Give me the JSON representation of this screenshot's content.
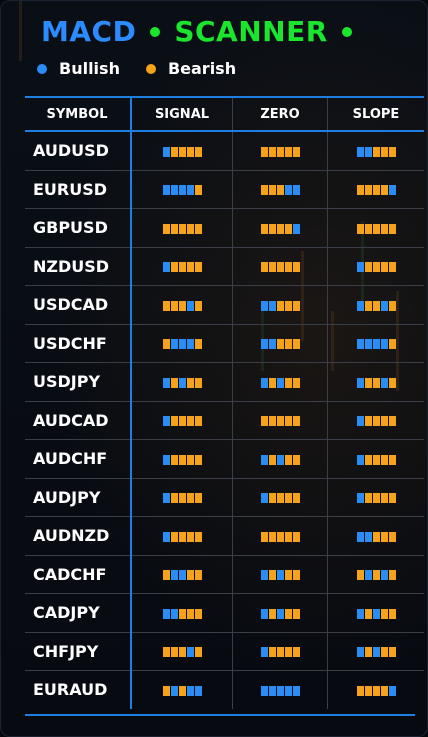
{
  "header": {
    "title_left": "MACD",
    "title_right": "SCANNER",
    "title_left_color": "#2c8cff",
    "title_right_color": "#19e62c"
  },
  "legend": {
    "bullish_label": "Bullish",
    "bearish_label": "Bearish",
    "bullish_color": "#2a8cf5",
    "bearish_color": "#f7a21b"
  },
  "table": {
    "columns": [
      "SYMBOL",
      "SIGNAL",
      "ZERO",
      "SLOPE"
    ],
    "rows": [
      {
        "symbol": "AUDUSD",
        "signal": "BRRRR",
        "zero": "RRRRR",
        "slope": "BBRRR"
      },
      {
        "symbol": "EURUSD",
        "signal": "BBBBR",
        "zero": "RRRBB",
        "slope": "RRRRB"
      },
      {
        "symbol": "GBPUSD",
        "signal": "RRRRR",
        "zero": "RRRRB",
        "slope": "RRRRR"
      },
      {
        "symbol": "NZDUSD",
        "signal": "BRRRR",
        "zero": "RRRRR",
        "slope": "BRRRR"
      },
      {
        "symbol": "USDCAD",
        "signal": "RRRBR",
        "zero": "BBRRR",
        "slope": "BRRBR"
      },
      {
        "symbol": "USDCHF",
        "signal": "RBBBR",
        "zero": "BBRRR",
        "slope": "BBBBR"
      },
      {
        "symbol": "USDJPY",
        "signal": "BRBRR",
        "zero": "BRBRR",
        "slope": "BRRBR"
      },
      {
        "symbol": "AUDCAD",
        "signal": "BRRRR",
        "zero": "RRRRR",
        "slope": "BRRRR"
      },
      {
        "symbol": "AUDCHF",
        "signal": "BRRRR",
        "zero": "BRBRR",
        "slope": "BRRRR"
      },
      {
        "symbol": "AUDJPY",
        "signal": "BRRRR",
        "zero": "BRRRR",
        "slope": "BRRRR"
      },
      {
        "symbol": "AUDNZD",
        "signal": "BRRRR",
        "zero": "RRRRR",
        "slope": "BBRRR"
      },
      {
        "symbol": "CADCHF",
        "signal": "RBBRR",
        "zero": "BRBRR",
        "slope": "RBRBR"
      },
      {
        "symbol": "CADJPY",
        "signal": "BBRRR",
        "zero": "BRBRR",
        "slope": "BRBRR"
      },
      {
        "symbol": "CHFJPY",
        "signal": "RRRBR",
        "zero": "BRRRR",
        "slope": "BRBRR"
      },
      {
        "symbol": "EURAUD",
        "signal": "RBRBB",
        "zero": "BBBBB",
        "slope": "RRRRB"
      }
    ]
  }
}
